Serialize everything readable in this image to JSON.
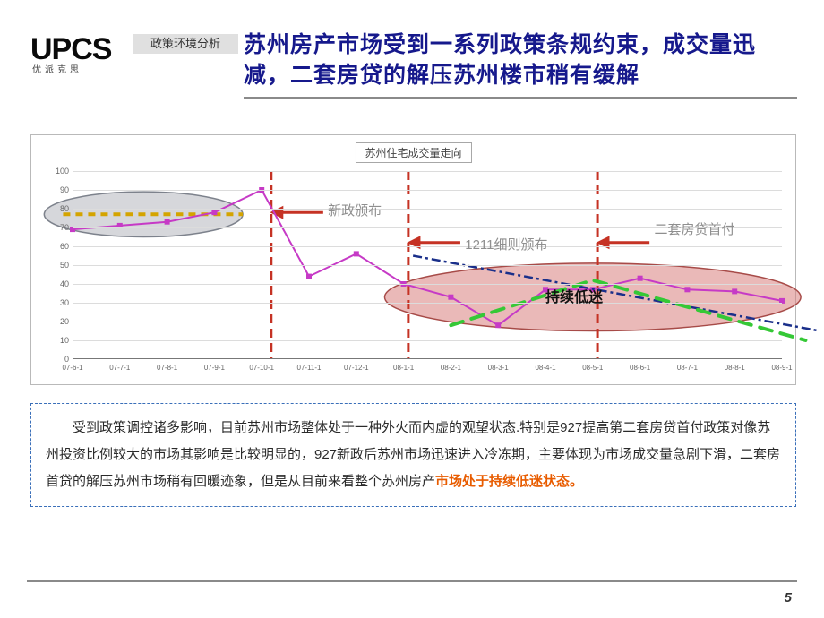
{
  "brand": {
    "logo": "UPCS",
    "logo_sub": "优派克思",
    "tag": "政策环境分析"
  },
  "title": "苏州房产市场受到一系列政策条规约束，成交量迅减，二套房贷的解压苏州楼市稍有缓解",
  "chart": {
    "title": "苏州住宅成交量走向",
    "type": "line",
    "ylim": [
      0,
      100
    ],
    "ytick_step": 10,
    "grid_color": "#dcdcdc",
    "axis_color": "#777777",
    "background": "#ffffff",
    "x_labels": [
      "07-6-1",
      "07-7-1",
      "07-8-1",
      "07-9-1",
      "07-10-1",
      "07-11-1",
      "07-12-1",
      "08-1-1",
      "08-2-1",
      "08-3-1",
      "08-4-1",
      "08-5-1",
      "08-6-1",
      "08-7-1",
      "08-8-1",
      "08-9-1"
    ],
    "series_main": {
      "color": "#c63ac6",
      "width": 2,
      "values": [
        69,
        71,
        73,
        78,
        90,
        44,
        56,
        40,
        33,
        18,
        37,
        37,
        43,
        37,
        36,
        31
      ]
    },
    "series_dashdot": {
      "color": "#1a2f8a",
      "width": 2.5,
      "dash": "10 4 3 4",
      "points": [
        [
          7.2,
          55
        ],
        [
          15.8,
          15
        ]
      ]
    },
    "series_green": {
      "color": "#35c836",
      "width": 4,
      "dash": "14 10",
      "points": [
        [
          8,
          18
        ],
        [
          11,
          42
        ],
        [
          15.5,
          10
        ]
      ]
    },
    "ellipse_gray": {
      "cx_idx": 1.5,
      "cy_val": 77,
      "rx_idx": 2.1,
      "ry_val": 12,
      "fill": "#b4b7bd",
      "fill_opacity": 0.55,
      "stroke": "#7d828c"
    },
    "dash_yellow": {
      "color": "#d4a400",
      "width": 4,
      "dash": "8 6",
      "points": [
        [
          -0.2,
          77
        ],
        [
          3.6,
          77
        ]
      ]
    },
    "ellipse_pink": {
      "cx_idx": 11.0,
      "cy_val": 33,
      "rx_idx": 4.4,
      "ry_val": 18,
      "fill": "#d97f7d",
      "fill_opacity": 0.55,
      "stroke": "#a74b48"
    },
    "vlines": [
      {
        "x_idx": 4.2,
        "color": "#c53224",
        "width": 3,
        "dash": "10 6"
      },
      {
        "x_idx": 7.1,
        "color": "#c53224",
        "width": 3,
        "dash": "10 6"
      },
      {
        "x_idx": 11.1,
        "color": "#c53224",
        "width": 3,
        "dash": "10 6"
      }
    ],
    "arrows": [
      {
        "x_to_idx": 4.4,
        "x_from_idx": 5.3,
        "y_val": 78,
        "color": "#c53224",
        "width": 3
      },
      {
        "x_to_idx": 7.3,
        "x_from_idx": 8.2,
        "y_val": 62,
        "color": "#c53224",
        "width": 3
      },
      {
        "x_to_idx": 11.3,
        "x_from_idx": 12.2,
        "y_val": 62,
        "color": "#c53224",
        "width": 3
      }
    ],
    "annotations": [
      {
        "text": "新政颁布",
        "x_idx": 5.4,
        "y_val": 78,
        "color": "#8f8f8f"
      },
      {
        "text": "1211细则颁布",
        "x_idx": 8.3,
        "y_val": 60,
        "color": "#8f8f8f"
      },
      {
        "text": "二套房贷首付",
        "x_idx": 12.3,
        "y_val": 68,
        "color": "#8f8f8f",
        "wrap": 5
      },
      {
        "text": "持续低迷",
        "x_idx": 10.0,
        "y_val": 35,
        "color": "#111111",
        "bold": true
      }
    ]
  },
  "body_text": {
    "prefix": "受到政策调控诸多影响，目前苏州市场整体处于一种外火而内虚的观望状态.特别是927提高第二套房贷首付政策对像苏州投资比例较大的市场其影响是比较明显的，927新政后苏州市场迅速进入冷冻期，主要体现为市场成交量急剧下滑，二套房首贷的解压苏州市场稍有回暖迹象，但是从目前来看整个苏州房产",
    "hot": "市场处于持续低迷状态。"
  },
  "page_number": "5"
}
